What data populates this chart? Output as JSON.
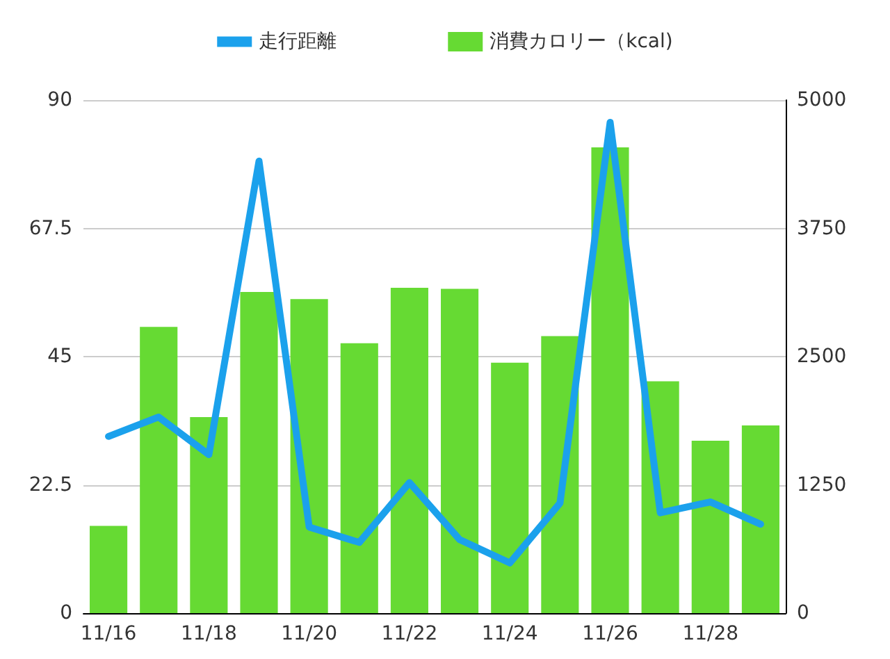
{
  "chart_data": {
    "type": "bar",
    "categories": [
      "11/16",
      null,
      "11/18",
      null,
      "11/20",
      null,
      "11/22",
      null,
      "11/24",
      null,
      "11/26",
      null,
      "11/28",
      null
    ],
    "series": [
      {
        "name": "走行距離",
        "type": "line",
        "color": "#1ba1ec",
        "marker": "none",
        "line_style": "solid",
        "values": [
          31,
          34.4,
          27.8,
          79.3,
          15.1,
          12.4,
          22.9,
          12.9,
          8.8,
          19.3,
          86.1,
          17.6,
          19.5,
          15.6
        ]
      },
      {
        "name": "消費カロリー（kcal)",
        "axis": "y2",
        "color": "#66da33",
        "values": [
          850,
          2790,
          1910,
          3130,
          3060,
          2630,
          3170,
          3160,
          2440,
          2700,
          4540,
          2260,
          1680,
          1830
        ]
      }
    ],
    "ylim": [
      0,
      90
    ],
    "yticks": [
      0,
      22.5,
      45,
      67.5,
      90
    ],
    "y2lim": [
      0,
      5000
    ],
    "y2ticks": [
      0,
      1250,
      2500,
      3750,
      5000
    ],
    "grid": "y",
    "legend": "top"
  }
}
